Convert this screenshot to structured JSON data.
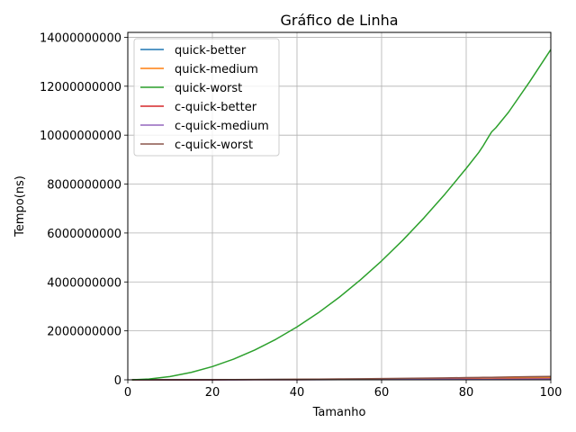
{
  "chart_data": {
    "type": "line",
    "title": "Gráfico de Linha",
    "xlabel": "Tamanho",
    "ylabel": "Tempo(ns)",
    "xlim": [
      0,
      100
    ],
    "ylim": [
      0,
      14200000000
    ],
    "xticks": [
      0,
      20,
      40,
      60,
      80,
      100
    ],
    "xtick_labels": [
      "0",
      "20",
      "40",
      "60",
      "80",
      "100"
    ],
    "yticks": [
      0,
      2000000000,
      4000000000,
      6000000000,
      8000000000,
      10000000000,
      12000000000,
      14000000000
    ],
    "ytick_labels": [
      "0",
      "2000000000",
      "4000000000",
      "6000000000",
      "8000000000",
      "10000000000",
      "12000000000",
      "14000000000"
    ],
    "grid": true,
    "legend_position": "top-left",
    "x": [
      1,
      5,
      10,
      15,
      20,
      25,
      30,
      35,
      40,
      45,
      50,
      55,
      60,
      65,
      70,
      75,
      80,
      83,
      84,
      85,
      86,
      87,
      90,
      95,
      100
    ],
    "series": [
      {
        "name": "quick-better",
        "color": "#1f77b4",
        "values": [
          0,
          250000,
          1000000,
          2200000,
          4000000,
          6200000,
          9000000,
          12000000,
          16000000,
          20000000,
          25000000,
          30000000,
          36000000,
          42000000,
          49000000,
          56000000,
          64000000,
          69000000,
          71000000,
          72000000,
          74000000,
          76000000,
          81000000,
          90000000,
          100000000
        ]
      },
      {
        "name": "quick-medium",
        "color": "#ff7f0e",
        "values": [
          0,
          200000,
          800000,
          1800000,
          3200000,
          5000000,
          7200000,
          9800000,
          12800000,
          16200000,
          20000000,
          24200000,
          28800000,
          33800000,
          39200000,
          45000000,
          51200000,
          55100000,
          56400000,
          57800000,
          59100000,
          60500000,
          64800000,
          72200000,
          80000000
        ]
      },
      {
        "name": "quick-worst",
        "color": "#2ca02c",
        "values": [
          1350000,
          33800000,
          135000000,
          304000000,
          540000000,
          844000000,
          1215000000,
          1654000000,
          2160000000,
          2734000000,
          3375000000,
          4084000000,
          4860000000,
          5704000000,
          6615000000,
          7594000000,
          8640000000,
          9300000000,
          9560000000,
          9850000000,
          10130000000,
          10300000000,
          10935000000,
          12184000000,
          13500000000
        ]
      },
      {
        "name": "c-quick-better",
        "color": "#d62728",
        "values": [
          0,
          100000,
          400000,
          900000,
          1600000,
          2500000,
          3600000,
          4900000,
          6400000,
          8100000,
          10000000,
          12100000,
          14400000,
          16900000,
          19600000,
          22500000,
          25600000,
          27600000,
          28200000,
          28900000,
          29600000,
          30300000,
          32400000,
          36100000,
          40000000
        ]
      },
      {
        "name": "c-quick-medium",
        "color": "#9467bd",
        "values": [
          0,
          75000,
          300000,
          675000,
          1200000,
          1875000,
          2700000,
          3675000,
          4800000,
          6075000,
          7500000,
          9075000,
          10800000,
          12675000,
          14700000,
          16875000,
          19200000,
          20700000,
          21200000,
          21700000,
          22200000,
          22700000,
          24300000,
          27100000,
          30000000
        ]
      },
      {
        "name": "c-quick-worst",
        "color": "#8c564b",
        "values": [
          0,
          350000,
          1400000,
          3150000,
          5600000,
          8750000,
          12600000,
          17150000,
          22400000,
          28350000,
          35000000,
          42350000,
          50400000,
          59150000,
          68600000,
          78750000,
          89600000,
          96400000,
          98800000,
          101100000,
          103500000,
          106000000,
          113400000,
          126400000,
          140000000
        ]
      }
    ]
  }
}
